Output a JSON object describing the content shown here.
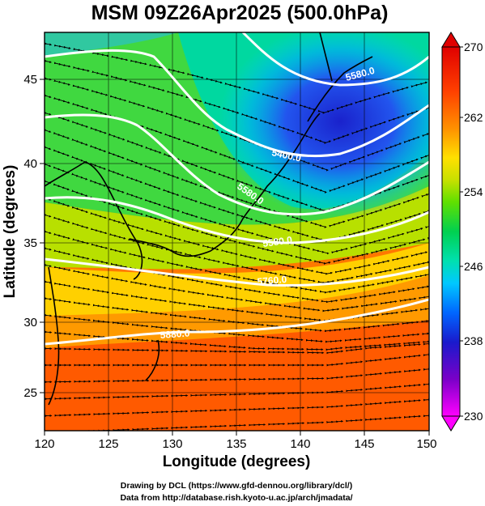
{
  "figure": {
    "title": "MSM 09Z26Apr2025 (500.0hPa)",
    "xlabel": "Longitude (degrees)",
    "ylabel": "Latitude  (degrees)",
    "credit_line1": "Drawing by DCL (https://www.gfd-dennou.org/library/dcl/)",
    "credit_line2": "Data from http://database.rish.kyoto-u.ac.jp/arch/jmadata/"
  },
  "map": {
    "lon_range": [
      120,
      150
    ],
    "lat_range": [
      22.4,
      47.6
    ],
    "lon_ticks": [
      "120",
      "125",
      "130",
      "135",
      "140",
      "145",
      "150"
    ],
    "lat_ticks": [
      "25",
      "30",
      "35",
      "40",
      "45"
    ],
    "contour_labels": [
      "5580.0",
      "5400.0",
      "5580.0",
      "5580.0",
      "5760.0",
      "5880.0"
    ],
    "field": "temperature (K), shaded",
    "overlays": [
      "geopotential height contours (white)",
      "wind streamlines (black arrows)",
      "coastlines (black)"
    ]
  },
  "colorbar": {
    "min": 230,
    "max": 270,
    "tick_labels": [
      "270",
      "262",
      "254",
      "246",
      "238",
      "230"
    ],
    "colors": [
      "#ff00ff",
      "#7a00c8",
      "#1a1acc",
      "#0066ff",
      "#00c8ff",
      "#00e0b0",
      "#00d050",
      "#60e000",
      "#c8e000",
      "#ffe000",
      "#ff9000",
      "#ff4000",
      "#e00000"
    ]
  }
}
